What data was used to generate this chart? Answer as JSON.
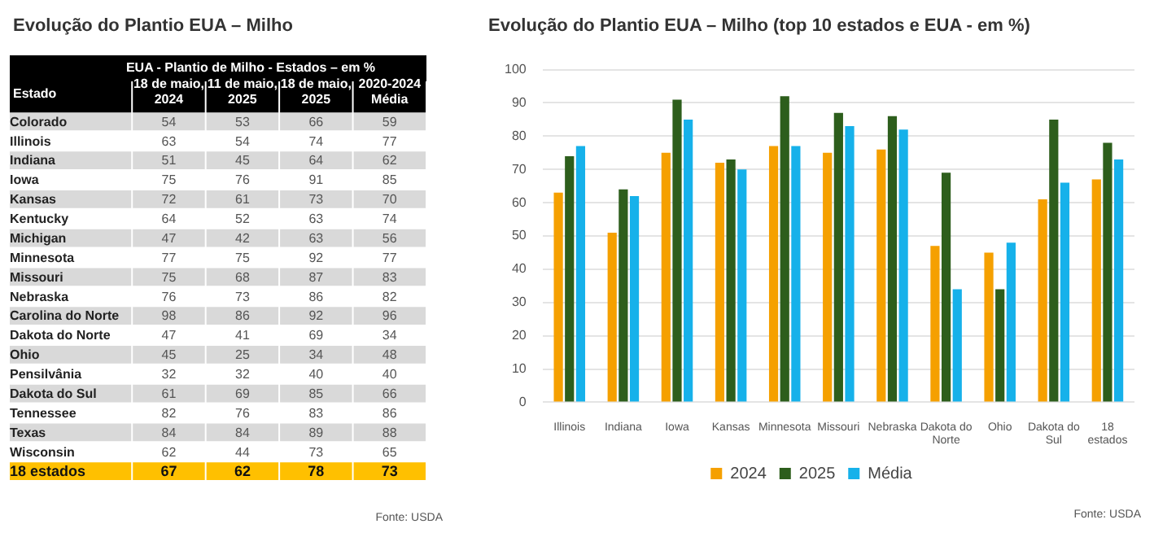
{
  "chart_data": [
    {
      "type": "heatmap",
      "title": "Evolução do Plantio EUA – Milho",
      "subtitle": "EUA - Plantio de Milho - Estados – em %",
      "ylabel": "Estado",
      "categories": [
        "18 de maio, 2024",
        "11 de maio, 2025",
        "18 de maio, 2025",
        "2020-2024 Média"
      ],
      "y_categories": [
        "Colorado",
        "Illinois",
        "Indiana",
        "Iowa",
        "Kansas",
        "Kentucky",
        "Michigan",
        "Minnesota",
        "Missouri",
        "Nebraska",
        "Carolina do Norte",
        "Dakota do Norte",
        "Ohio",
        "Pensilvânia",
        "Dakota do Sul",
        "Tennessee",
        "Texas",
        "Wisconsin",
        "18 estados"
      ],
      "cells": [
        [
          54,
          53,
          66,
          59
        ],
        [
          63,
          54,
          74,
          77
        ],
        [
          51,
          45,
          64,
          62
        ],
        [
          75,
          76,
          91,
          85
        ],
        [
          72,
          61,
          73,
          70
        ],
        [
          64,
          52,
          63,
          74
        ],
        [
          47,
          42,
          63,
          56
        ],
        [
          77,
          75,
          92,
          77
        ],
        [
          75,
          68,
          87,
          83
        ],
        [
          76,
          73,
          86,
          82
        ],
        [
          98,
          86,
          92,
          96
        ],
        [
          47,
          41,
          69,
          34
        ],
        [
          45,
          25,
          34,
          48
        ],
        [
          32,
          32,
          40,
          40
        ],
        [
          61,
          69,
          85,
          66
        ],
        [
          82,
          76,
          83,
          86
        ],
        [
          84,
          84,
          89,
          88
        ],
        [
          62,
          44,
          73,
          65
        ],
        [
          67,
          62,
          78,
          73
        ]
      ],
      "data_labels": true,
      "annotations": [
        "Fonte: USDA"
      ]
    },
    {
      "type": "bar",
      "title": "Evolução do Plantio EUA – Milho (top 10 estados e EUA - em %)",
      "categories": [
        "Illinois",
        "Indiana",
        "Iowa",
        "Kansas",
        "Minnesota",
        "Missouri",
        "Nebraska",
        "Dakota do Norte",
        "Ohio",
        "Dakota do Sul",
        "18 estados"
      ],
      "series": [
        {
          "name": "2024",
          "color": "#f5a000",
          "values": [
            63,
            51,
            75,
            72,
            77,
            75,
            76,
            47,
            45,
            61,
            67
          ]
        },
        {
          "name": "2025",
          "color": "#2d5e1c",
          "values": [
            74,
            64,
            91,
            73,
            92,
            87,
            86,
            69,
            34,
            85,
            78
          ]
        },
        {
          "name": "Média",
          "color": "#16b1ea",
          "values": [
            77,
            62,
            85,
            70,
            77,
            83,
            82,
            34,
            48,
            66,
            73
          ]
        }
      ],
      "ylim": [
        0,
        100
      ],
      "yticks": [
        0,
        10,
        20,
        30,
        40,
        50,
        60,
        70,
        80,
        90,
        100
      ],
      "grid": "y",
      "legend": "bottom",
      "annotations": [
        "Fonte: USDA"
      ]
    }
  ]
}
